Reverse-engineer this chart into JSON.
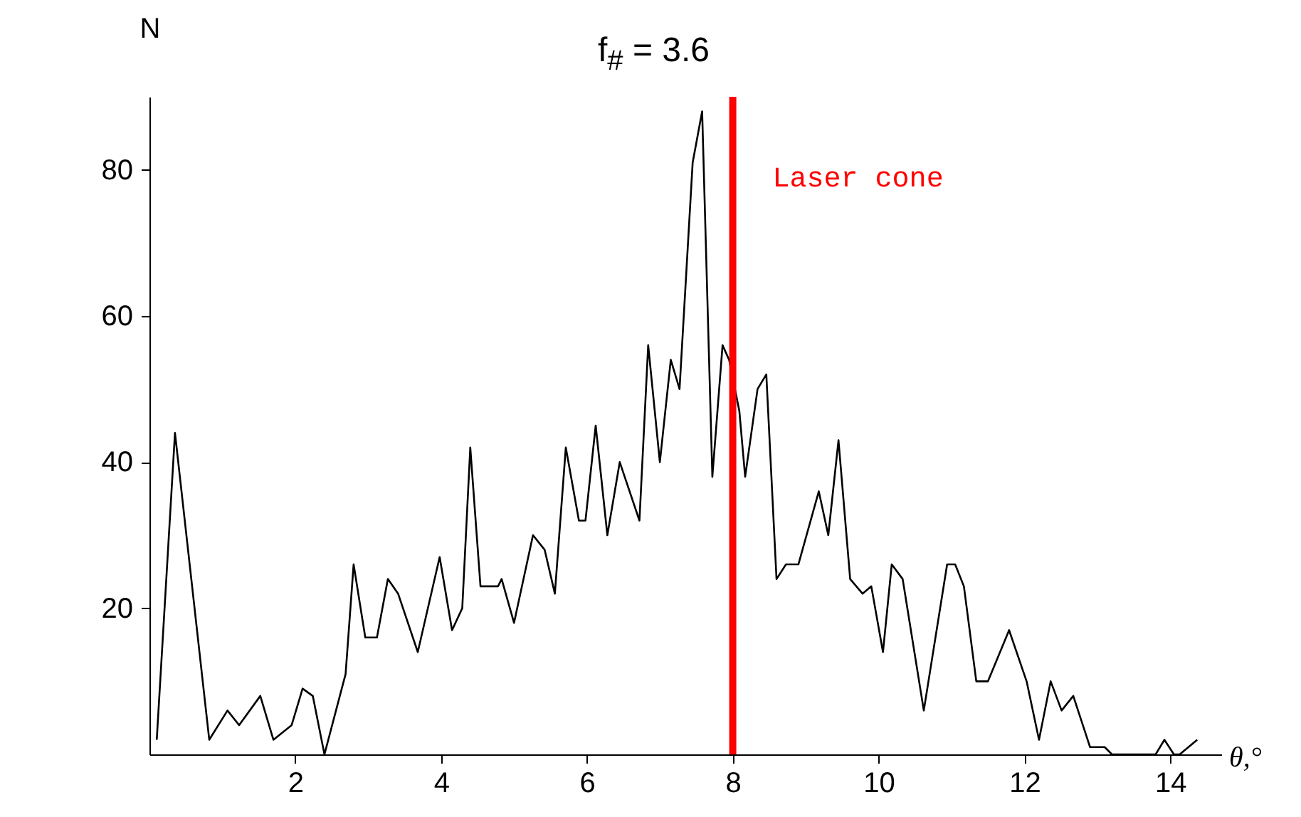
{
  "chart_data": {
    "type": "line",
    "title": "f$_{#}$ = 3.6",
    "xlabel": "θ,°",
    "ylabel": "N",
    "x": [
      0.1,
      0.35,
      0.82,
      1.07,
      1.23,
      1.52,
      1.7,
      1.95,
      2.1,
      2.24,
      2.4,
      2.69,
      2.8,
      2.96,
      3.12,
      3.27,
      3.41,
      3.68,
      3.98,
      4.15,
      4.29,
      4.4,
      4.54,
      4.78,
      4.83,
      5.0,
      5.26,
      5.42,
      5.56,
      5.71,
      5.89,
      5.98,
      6.12,
      6.28,
      6.45,
      6.72,
      6.84,
      7.0,
      7.15,
      7.27,
      7.45,
      7.58,
      7.72,
      7.86,
      7.95,
      8.09,
      8.17,
      8.34,
      8.46,
      8.6,
      8.73,
      8.9,
      9.18,
      9.31,
      9.45,
      9.61,
      9.78,
      9.9,
      10.06,
      10.18,
      10.33,
      10.62,
      10.94,
      11.05,
      11.17,
      11.34,
      11.5,
      11.79,
      12.03,
      12.2,
      12.36,
      12.51,
      12.67,
      12.9,
      13.1,
      13.2,
      13.8,
      13.92,
      14.05,
      14.13,
      14.37
    ],
    "series": [
      {
        "color": "#000000",
        "values": [
          2,
          44,
          2,
          6,
          4,
          8,
          2,
          4,
          9,
          8,
          0,
          11,
          26,
          16,
          16,
          24,
          22,
          14,
          27,
          17,
          20,
          42,
          23,
          23,
          24,
          18,
          30,
          28,
          22,
          42,
          32,
          32,
          45,
          30,
          40,
          32,
          56,
          40,
          54,
          50,
          81,
          88,
          38,
          56,
          54,
          47,
          38,
          50,
          52,
          24,
          26,
          26,
          36,
          30,
          43,
          24,
          22,
          23,
          14,
          26,
          24,
          6,
          26,
          26,
          23,
          10,
          10,
          17,
          10,
          2,
          10,
          6,
          8,
          1,
          1,
          0,
          0,
          2,
          0,
          0,
          2
        ]
      }
    ],
    "xlim": [
      0,
      14.7
    ],
    "ylim": [
      0,
      90
    ],
    "xticks": [
      2,
      4,
      6,
      8,
      10,
      12,
      14
    ],
    "yticks": [
      20,
      40,
      60,
      80
    ],
    "ref_lines": [
      {
        "axis": "x",
        "value": 8,
        "label": "Laser cone",
        "color": "#ff0000"
      }
    ],
    "grid": false,
    "marker": "none",
    "line_style": "solid"
  }
}
